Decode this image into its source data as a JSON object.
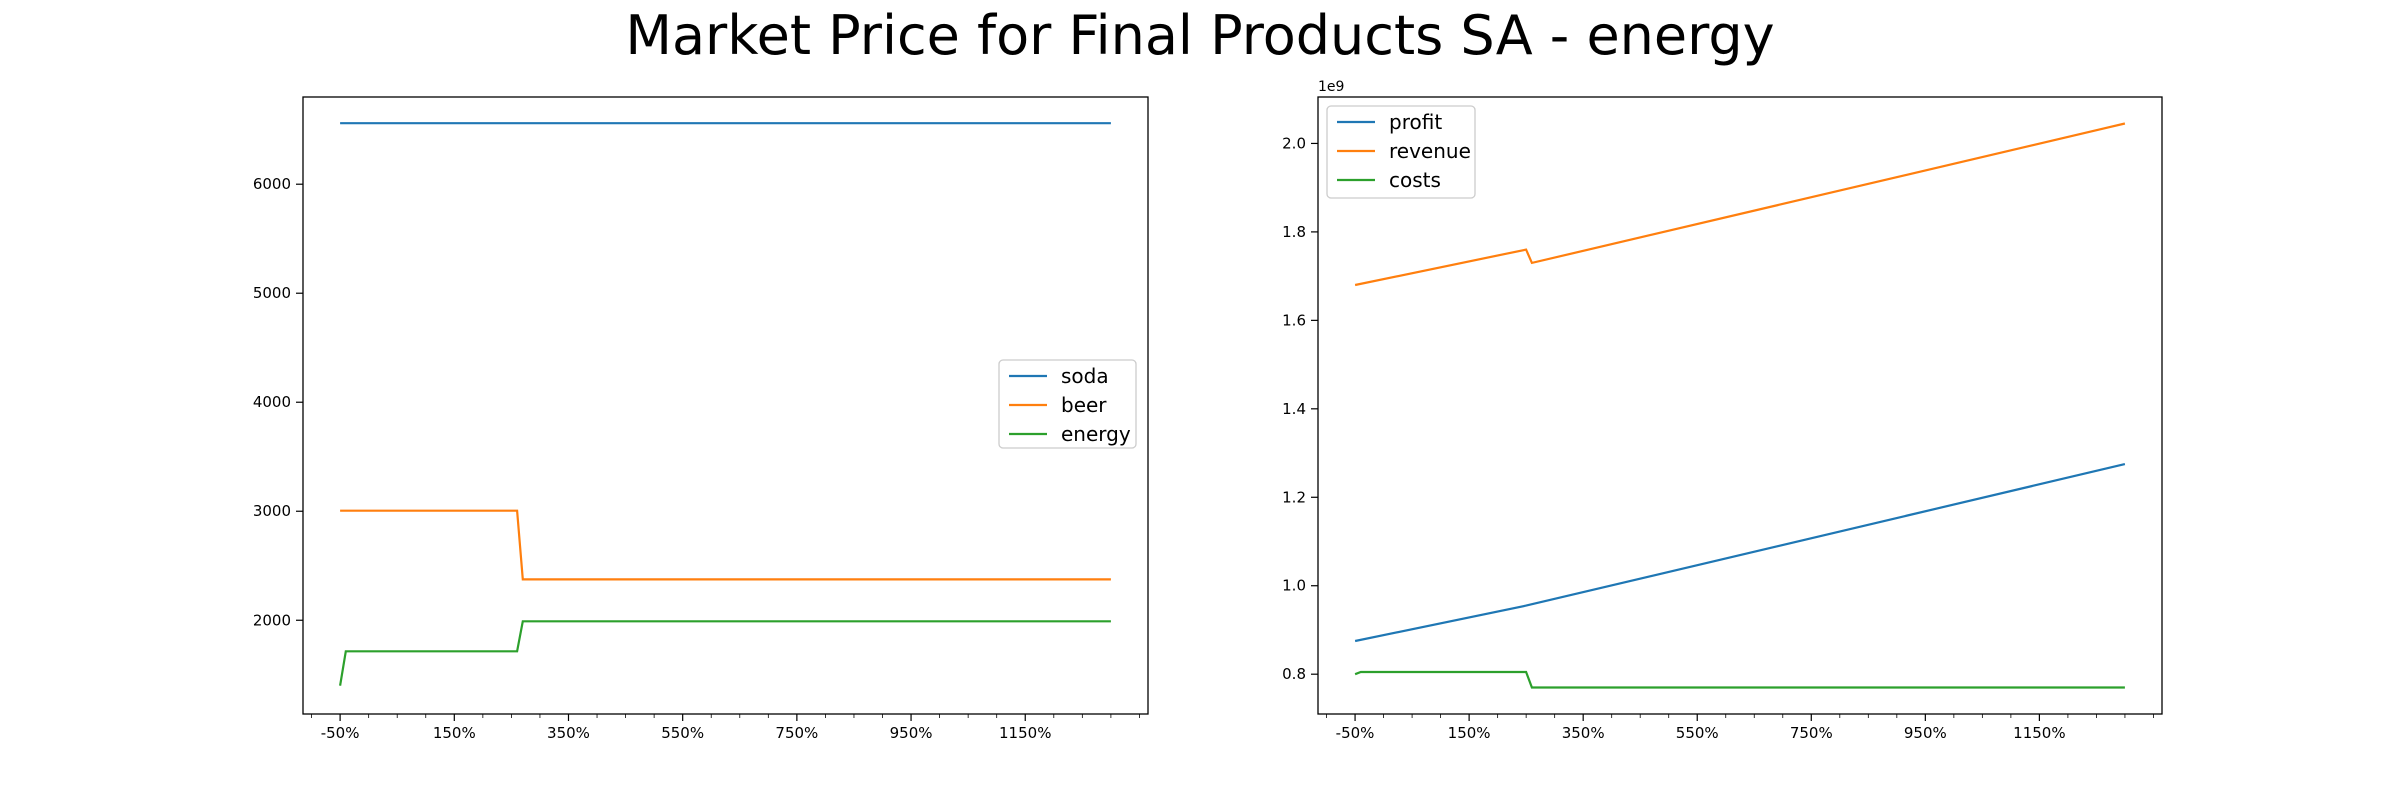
{
  "figure": {
    "title": "Market Price for Final Products SA - energy"
  },
  "chart_data": [
    {
      "type": "line",
      "x": [
        -50,
        250,
        270,
        1300
      ],
      "x_tick_values": [
        -50,
        150,
        350,
        550,
        750,
        950,
        1150
      ],
      "x_tick_labels": [
        "-50%",
        "150%",
        "350%",
        "550%",
        "750%",
        "950%",
        "1150%"
      ],
      "xlim": [
        -115,
        1365
      ],
      "ylim": [
        1140,
        6800
      ],
      "y_tick_values": [
        2000,
        3000,
        4000,
        5000,
        6000
      ],
      "y_tick_labels": [
        "2000",
        "3000",
        "4000",
        "5000",
        "6000"
      ],
      "legend_position": "center-right",
      "series": [
        {
          "name": "soda",
          "color": "#1f77b4",
          "points": [
            [
              -50,
              6560
            ],
            [
              1300,
              6560
            ]
          ]
        },
        {
          "name": "beer",
          "color": "#ff7f0e",
          "points": [
            [
              -50,
              3005
            ],
            [
              260,
              3005
            ],
            [
              270,
              2375
            ],
            [
              1300,
              2375
            ]
          ]
        },
        {
          "name": "energy",
          "color": "#2ca02c",
          "points": [
            [
              -50,
              1400
            ],
            [
              -40,
              1715
            ],
            [
              260,
              1715
            ],
            [
              270,
              1990
            ],
            [
              1300,
              1990
            ]
          ]
        }
      ]
    },
    {
      "type": "line",
      "x": [
        -50,
        250,
        260,
        1300
      ],
      "x_tick_values": [
        -50,
        150,
        350,
        550,
        750,
        950,
        1150
      ],
      "x_tick_labels": [
        "-50%",
        "150%",
        "350%",
        "550%",
        "750%",
        "950%",
        "1150%"
      ],
      "xlim": [
        -115,
        1365
      ],
      "ylim": [
        0.71,
        2.105
      ],
      "y_tick_values": [
        0.8,
        1.0,
        1.2,
        1.4,
        1.6,
        1.8,
        2.0
      ],
      "y_tick_labels": [
        "0.8",
        "1.0",
        "1.2",
        "1.4",
        "1.6",
        "1.8",
        "2.0"
      ],
      "y_offset_label": "1e9",
      "legend_position": "upper-left",
      "series": [
        {
          "name": "profit",
          "color": "#1f77b4",
          "points": [
            [
              -50,
              0.875
            ],
            [
              250,
              0.955
            ],
            [
              1300,
              1.275
            ]
          ]
        },
        {
          "name": "revenue",
          "color": "#ff7f0e",
          "points": [
            [
              -50,
              1.68
            ],
            [
              250,
              1.76
            ],
            [
              260,
              1.73
            ],
            [
              1300,
              2.045
            ]
          ]
        },
        {
          "name": "costs",
          "color": "#2ca02c",
          "points": [
            [
              -50,
              0.8
            ],
            [
              -40,
              0.805
            ],
            [
              250,
              0.805
            ],
            [
              260,
              0.77
            ],
            [
              1300,
              0.77
            ]
          ]
        }
      ]
    }
  ]
}
